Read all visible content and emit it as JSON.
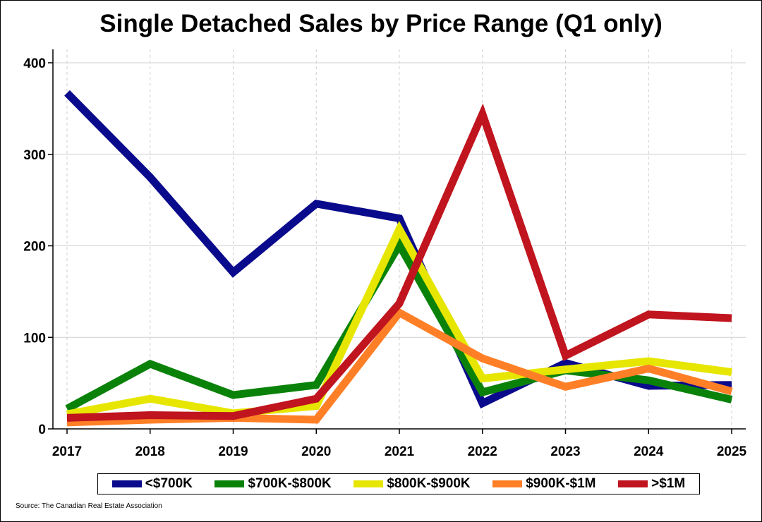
{
  "chart_data": {
    "type": "line",
    "title": "Single Detached Sales by Price Range (Q1 only)",
    "xlabel": "",
    "ylabel": "",
    "x": [
      "2017",
      "2018",
      "2019",
      "2020",
      "2021",
      "2022",
      "2023",
      "2024",
      "2025"
    ],
    "ylim": [
      0,
      400
    ],
    "yticks": [
      0,
      100,
      200,
      300,
      400
    ],
    "grid": true,
    "legend_position": "bottom",
    "series": [
      {
        "name": "<$700K",
        "color": "#0a0a8c",
        "values": [
          367,
          275,
          171,
          246,
          230,
          28,
          72,
          47,
          48
        ]
      },
      {
        "name": "$700K-$800K",
        "color": "#0a820a",
        "values": [
          22,
          71,
          37,
          48,
          201,
          40,
          64,
          53,
          32
        ]
      },
      {
        "name": "$800K-$900K",
        "color": "#e6e600",
        "values": [
          16,
          33,
          17,
          25,
          218,
          55,
          65,
          74,
          62
        ]
      },
      {
        "name": "$900K-$1M",
        "color": "#ff7f27",
        "values": [
          7,
          10,
          12,
          10,
          127,
          77,
          46,
          66,
          41
        ]
      },
      {
        "name": ">$1M",
        "color": "#c0141e",
        "values": [
          12,
          15,
          14,
          33,
          137,
          344,
          80,
          125,
          121
        ]
      }
    ]
  },
  "source": "Source: The Canadian Real Estate Association"
}
